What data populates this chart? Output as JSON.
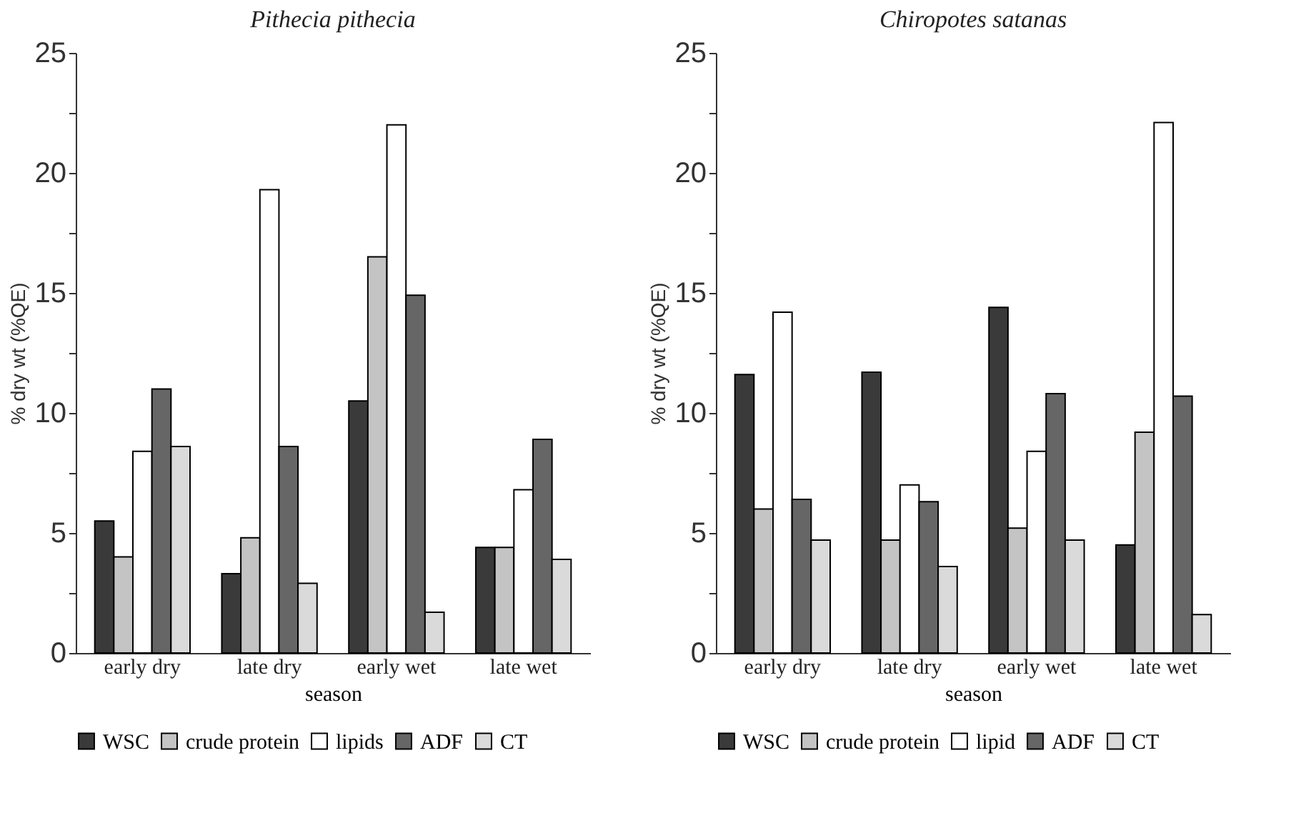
{
  "chart_data": [
    {
      "type": "bar",
      "title": "Pithecia pithecia",
      "xlabel": "season",
      "ylabel": "% dry wt (%QE)",
      "categories": [
        "early dry",
        "late dry",
        "early wet",
        "late wet"
      ],
      "ylim": [
        0,
        25
      ],
      "yticks": [
        0,
        {
          "value": 2.5,
          "label": null
        },
        5,
        {
          "value": 7.5,
          "label": null
        },
        10,
        {
          "value": 12.5,
          "label": null
        },
        15,
        {
          "value": 17.5,
          "label": null
        },
        20,
        {
          "value": 22.5,
          "label": null
        },
        25
      ],
      "grid": false,
      "legend": "bottom",
      "series": [
        {
          "name": "WSC",
          "color": "#3a3a3a",
          "values": [
            5.5,
            3.3,
            10.5,
            4.4
          ]
        },
        {
          "name": "crude protein",
          "color": "#c4c4c4",
          "values": [
            4.0,
            4.8,
            16.5,
            4.4
          ]
        },
        {
          "name": "lipids",
          "color": "#ffffff",
          "values": [
            8.4,
            19.3,
            22.0,
            6.8
          ]
        },
        {
          "name": "ADF",
          "color": "#666666",
          "values": [
            11.0,
            8.6,
            14.9,
            8.9
          ]
        },
        {
          "name": "CT",
          "color": "#dadada",
          "values": [
            8.6,
            2.9,
            1.7,
            3.9
          ]
        }
      ]
    },
    {
      "type": "bar",
      "title": "Chiropotes satanas",
      "xlabel": "season",
      "ylabel": "% dry wt (%QE)",
      "categories": [
        "early dry",
        "late dry",
        "early wet",
        "late wet"
      ],
      "ylim": [
        0,
        25
      ],
      "yticks": [
        0,
        {
          "value": 2.5,
          "label": null
        },
        5,
        {
          "value": 7.5,
          "label": null
        },
        10,
        {
          "value": 12.5,
          "label": null
        },
        15,
        {
          "value": 17.5,
          "label": null
        },
        20,
        {
          "value": 22.5,
          "label": null
        },
        25
      ],
      "grid": false,
      "legend": "bottom",
      "series": [
        {
          "name": "WSC",
          "color": "#3a3a3a",
          "values": [
            11.6,
            11.7,
            14.4,
            4.5
          ]
        },
        {
          "name": "crude protein",
          "color": "#c4c4c4",
          "values": [
            6.0,
            4.7,
            5.2,
            9.2
          ]
        },
        {
          "name": "lipid",
          "color": "#ffffff",
          "values": [
            14.2,
            7.0,
            8.4,
            22.1
          ]
        },
        {
          "name": "ADF",
          "color": "#666666",
          "values": [
            6.4,
            6.3,
            10.8,
            10.7
          ]
        },
        {
          "name": "CT",
          "color": "#dadada",
          "values": [
            4.7,
            3.6,
            4.7,
            1.6
          ]
        }
      ]
    }
  ]
}
